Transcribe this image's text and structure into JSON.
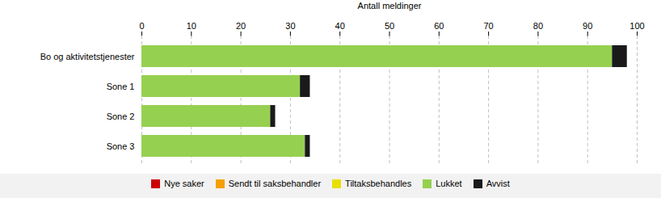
{
  "chart_data": {
    "type": "bar",
    "orientation": "horizontal",
    "stacked": true,
    "categories": [
      "Bo og aktivitetstjenester",
      "Sone 1",
      "Sone 2",
      "Sone 3"
    ],
    "series": [
      {
        "name": "Nye saker",
        "color": "#cc0000",
        "values": [
          0,
          0,
          0,
          0
        ]
      },
      {
        "name": "Sendt til saksbehandler",
        "color": "#f5a000",
        "values": [
          0,
          0,
          0,
          0
        ]
      },
      {
        "name": "Tiltaksbehandles",
        "color": "#e8e000",
        "values": [
          0,
          0,
          0,
          0
        ]
      },
      {
        "name": "Lukket",
        "color": "#96d050",
        "values": [
          95,
          32,
          26,
          33
        ]
      },
      {
        "name": "Avvist",
        "color": "#1a1a1a",
        "values": [
          3,
          2,
          1,
          1
        ]
      }
    ],
    "xlabel": "Antall meldinger",
    "xlim": [
      0,
      100
    ],
    "xticks": [
      0,
      10,
      20,
      30,
      40,
      50,
      60,
      70,
      80,
      90,
      100
    ],
    "grid": true,
    "legend": "bottom"
  }
}
